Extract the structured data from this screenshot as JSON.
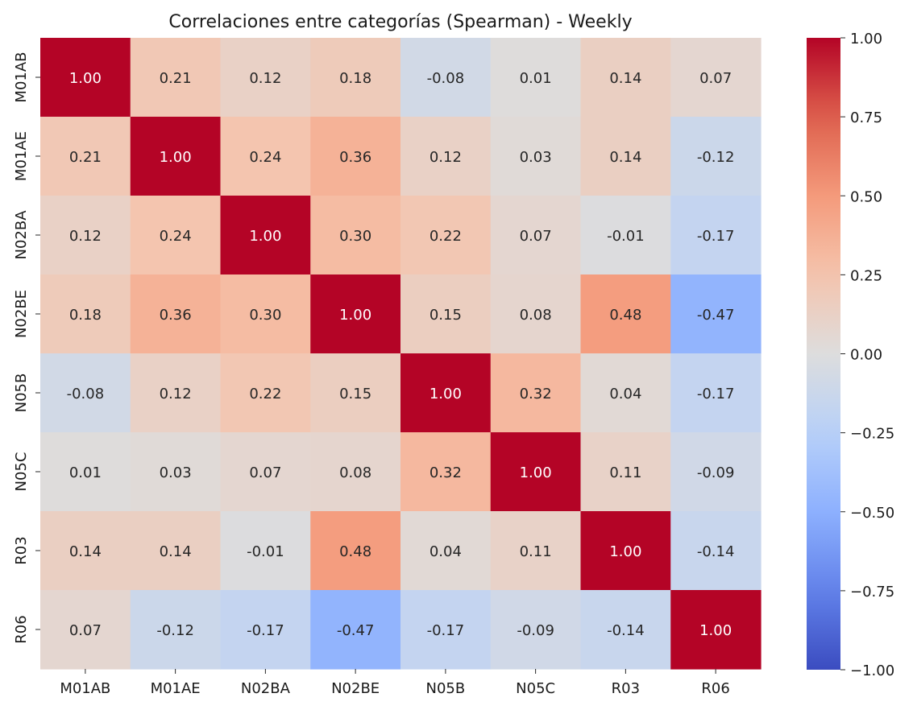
{
  "chart_data": {
    "type": "heatmap",
    "title": "Correlaciones entre categorías (Spearman) - Weekly",
    "xlabel": "",
    "ylabel": "",
    "x_categories": [
      "M01AB",
      "M01AE",
      "N02BA",
      "N02BE",
      "N05B",
      "N05C",
      "R03",
      "R06"
    ],
    "y_categories": [
      "M01AB",
      "M01AE",
      "N02BA",
      "N02BE",
      "N05B",
      "N05C",
      "R03",
      "R06"
    ],
    "values": [
      [
        1.0,
        0.21,
        0.12,
        0.18,
        -0.08,
        0.01,
        0.14,
        0.07
      ],
      [
        0.21,
        1.0,
        0.24,
        0.36,
        0.12,
        0.03,
        0.14,
        -0.12
      ],
      [
        0.12,
        0.24,
        1.0,
        0.3,
        0.22,
        0.07,
        -0.01,
        -0.17
      ],
      [
        0.18,
        0.36,
        0.3,
        1.0,
        0.15,
        0.08,
        0.48,
        -0.47
      ],
      [
        -0.08,
        0.12,
        0.22,
        0.15,
        1.0,
        0.32,
        0.04,
        -0.17
      ],
      [
        0.01,
        0.03,
        0.07,
        0.08,
        0.32,
        1.0,
        0.11,
        -0.09
      ],
      [
        0.14,
        0.14,
        -0.01,
        0.48,
        0.04,
        0.11,
        1.0,
        -0.14
      ],
      [
        0.07,
        -0.12,
        -0.17,
        -0.47,
        -0.17,
        -0.09,
        -0.14,
        1.0
      ]
    ],
    "colormap": "coolwarm",
    "vmin": -1.0,
    "vmax": 1.0,
    "colorbar_ticks": [
      1.0,
      0.75,
      0.5,
      0.25,
      0.0,
      -0.25,
      -0.5,
      -0.75,
      -1.0
    ],
    "colorbar_tick_labels": [
      "1.00",
      "0.75",
      "0.50",
      "0.25",
      "0.00",
      "−0.25",
      "−0.50",
      "−0.75",
      "−1.00"
    ],
    "annotation_format": "0.00",
    "grid": false,
    "legend": "colorbar-right"
  }
}
